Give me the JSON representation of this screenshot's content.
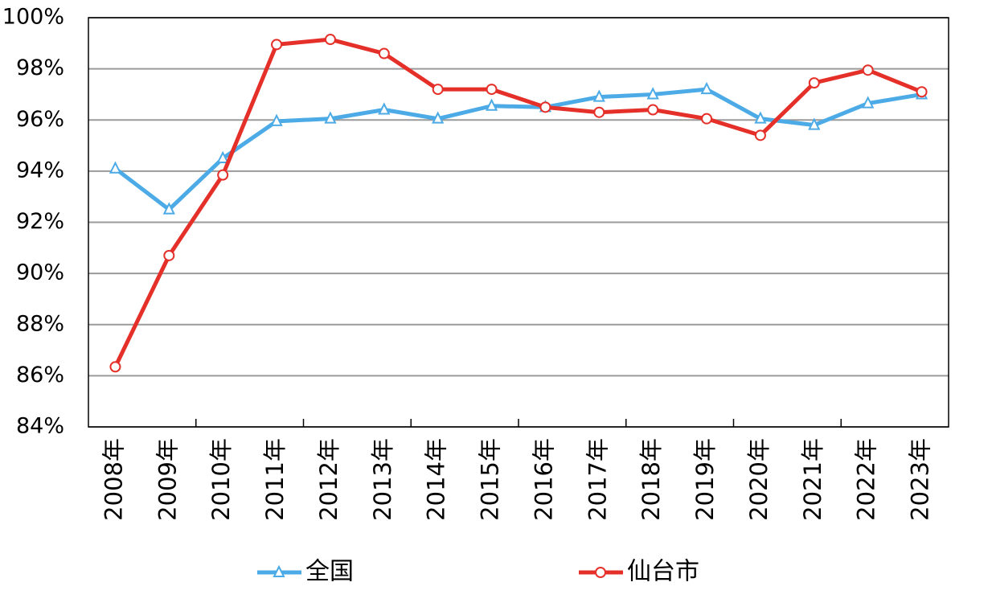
{
  "chart_data": {
    "type": "line",
    "categories": [
      "2008年",
      "2009年",
      "2010年",
      "2011年",
      "2012年",
      "2013年",
      "2014年",
      "2015年",
      "2016年",
      "2017年",
      "2018年",
      "2019年",
      "2020年",
      "2021年",
      "2022年",
      "2023年"
    ],
    "series": [
      {
        "name": "全国",
        "color": "#4cabe6",
        "marker": "triangle",
        "values": [
          94.1,
          92.5,
          94.5,
          95.95,
          96.05,
          96.4,
          96.05,
          96.55,
          96.5,
          96.9,
          97.0,
          97.2,
          96.05,
          95.8,
          96.65,
          97.0
        ]
      },
      {
        "name": "仙台市",
        "color": "#e5302a",
        "marker": "circle",
        "values": [
          86.35,
          90.7,
          93.85,
          98.95,
          99.15,
          98.6,
          97.2,
          97.2,
          96.5,
          96.3,
          96.4,
          96.05,
          95.4,
          97.45,
          97.95,
          97.1
        ]
      }
    ],
    "ylim": [
      84,
      100
    ],
    "yticks": [
      {
        "value": 84,
        "label": "84%"
      },
      {
        "value": 86,
        "label": "86%"
      },
      {
        "value": 88,
        "label": "88%"
      },
      {
        "value": 90,
        "label": "90%"
      },
      {
        "value": 92,
        "label": "92%"
      },
      {
        "value": 94,
        "label": "94%"
      },
      {
        "value": 96,
        "label": "96%"
      },
      {
        "value": 98,
        "label": "98%"
      },
      {
        "value": 100,
        "label": "100%"
      }
    ],
    "grid": true,
    "legend": "bottom"
  }
}
